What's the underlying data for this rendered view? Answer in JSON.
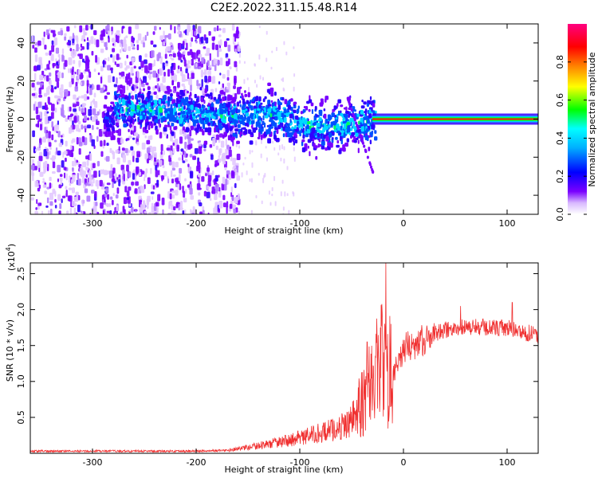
{
  "title": "C2E2.2022.311.15.48.R14",
  "chart_data": [
    {
      "type": "heatmap",
      "xlabel": "Height of straight line (km)",
      "ylabel": "Frequency (Hz)",
      "xlim": [
        -360,
        130
      ],
      "ylim": [
        -50,
        50
      ],
      "xticks": [
        -300,
        -200,
        -100,
        0,
        100
      ],
      "yticks": [
        -40,
        -20,
        0,
        20,
        40
      ],
      "colorbar": {
        "label": "Normalized spectral amplitude",
        "range": [
          0.0,
          1.0
        ],
        "ticks": [
          0.0,
          0.2,
          0.4,
          0.6,
          0.8
        ],
        "colors": [
          "#ffffff",
          "#7a00ff",
          "#0000ff",
          "#00ffff",
          "#00ff00",
          "#ffff00",
          "#ff7f00",
          "#ff0000",
          "#ff0080"
        ]
      },
      "features": {
        "carrier_line": {
          "frequency": 0,
          "x_range": [
            -30,
            130
          ],
          "amplitude": 1.0
        },
        "scatter_band": {
          "x_range": [
            -360,
            -165
          ],
          "amplitude": 0.1
        },
        "central_band_center_freq": [
          [
            -280,
            6
          ],
          [
            -240,
            5
          ],
          [
            -200,
            3
          ],
          [
            -160,
            2
          ],
          [
            -140,
            3
          ],
          [
            -120,
            2
          ],
          [
            -100,
            -3
          ],
          [
            -80,
            -4
          ],
          [
            -60,
            -3
          ],
          [
            -40,
            -2
          ],
          [
            -30,
            1
          ]
        ]
      },
      "grid": false
    },
    {
      "type": "line",
      "xlabel": "Height of straight line (km)",
      "ylabel": "SNR (10 * v/v)",
      "yscale_label": "(x10",
      "yscale_exp": "4",
      "yscale_close": ")",
      "xlim": [
        -360,
        130
      ],
      "ylim": [
        0.0,
        2.65
      ],
      "xticks": [
        -300,
        -200,
        -100,
        0,
        100
      ],
      "yticks": [
        0.5,
        1.0,
        1.5,
        2.0,
        2.5
      ],
      "ytick_labels": [
        "0.5",
        "1.0",
        "1.5",
        "2.0",
        "2.5"
      ],
      "color": "#f03030",
      "envelope": [
        [
          -360,
          0.03
        ],
        [
          -300,
          0.03
        ],
        [
          -200,
          0.03
        ],
        [
          -170,
          0.04
        ],
        [
          -150,
          0.08
        ],
        [
          -130,
          0.13
        ],
        [
          -110,
          0.18
        ],
        [
          -90,
          0.25
        ],
        [
          -70,
          0.32
        ],
        [
          -55,
          0.4
        ],
        [
          -45,
          0.55
        ],
        [
          -38,
          0.8
        ],
        [
          -30,
          1.05
        ],
        [
          -25,
          1.2
        ],
        [
          -20,
          1.28
        ],
        [
          -15,
          1.15
        ],
        [
          -10,
          1.2
        ],
        [
          -5,
          1.3
        ],
        [
          0,
          1.45
        ],
        [
          10,
          1.52
        ],
        [
          20,
          1.58
        ],
        [
          30,
          1.65
        ],
        [
          40,
          1.72
        ],
        [
          60,
          1.76
        ],
        [
          80,
          1.75
        ],
        [
          100,
          1.74
        ],
        [
          115,
          1.69
        ],
        [
          130,
          1.64
        ]
      ],
      "peaks": [
        [
          -17,
          2.65
        ],
        [
          -12,
          1.8
        ],
        [
          55,
          2.05
        ],
        [
          105,
          2.1
        ],
        [
          -35,
          1.55
        ]
      ]
    }
  ]
}
